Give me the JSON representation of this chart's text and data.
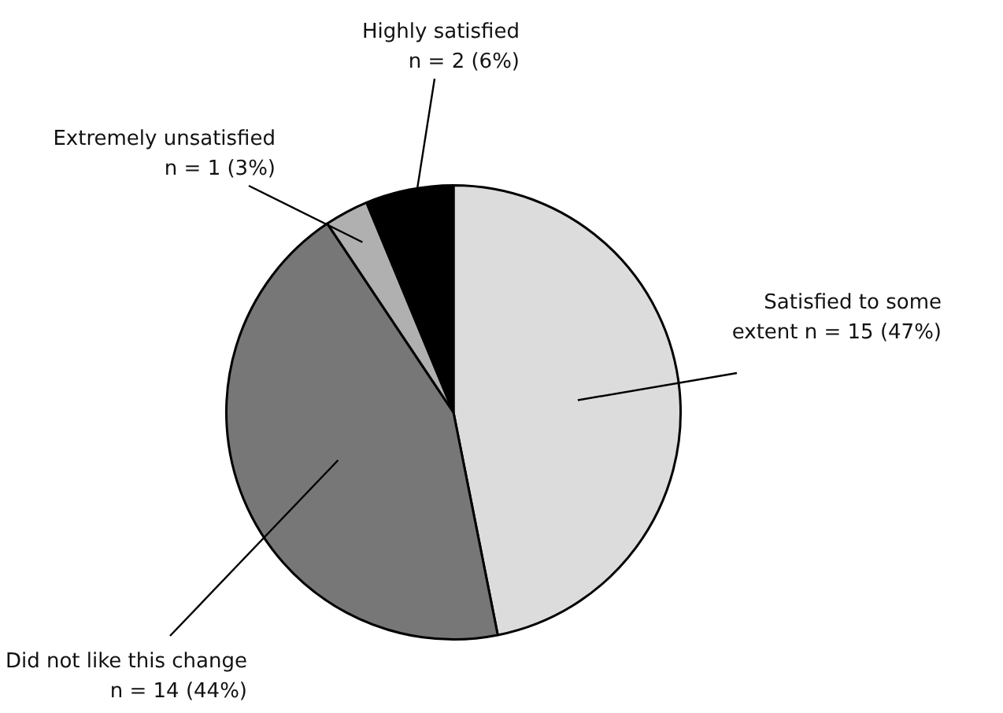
{
  "chart_data": {
    "type": "pie",
    "categories": [
      "Satisfied to some extent",
      "Did not like this change",
      "Extremely unsatisfied",
      "Highly satisfied"
    ],
    "values": [
      15,
      14,
      1,
      2
    ],
    "colors": [
      "#dcdcdc",
      "#777777",
      "#b0b0b0",
      "#000000"
    ],
    "value_labels": [
      "n = 15 (47%)",
      "n = 14 (44%)",
      "n = 1 (3%)",
      "n = 2 (6%)"
    ],
    "legend": false
  }
}
